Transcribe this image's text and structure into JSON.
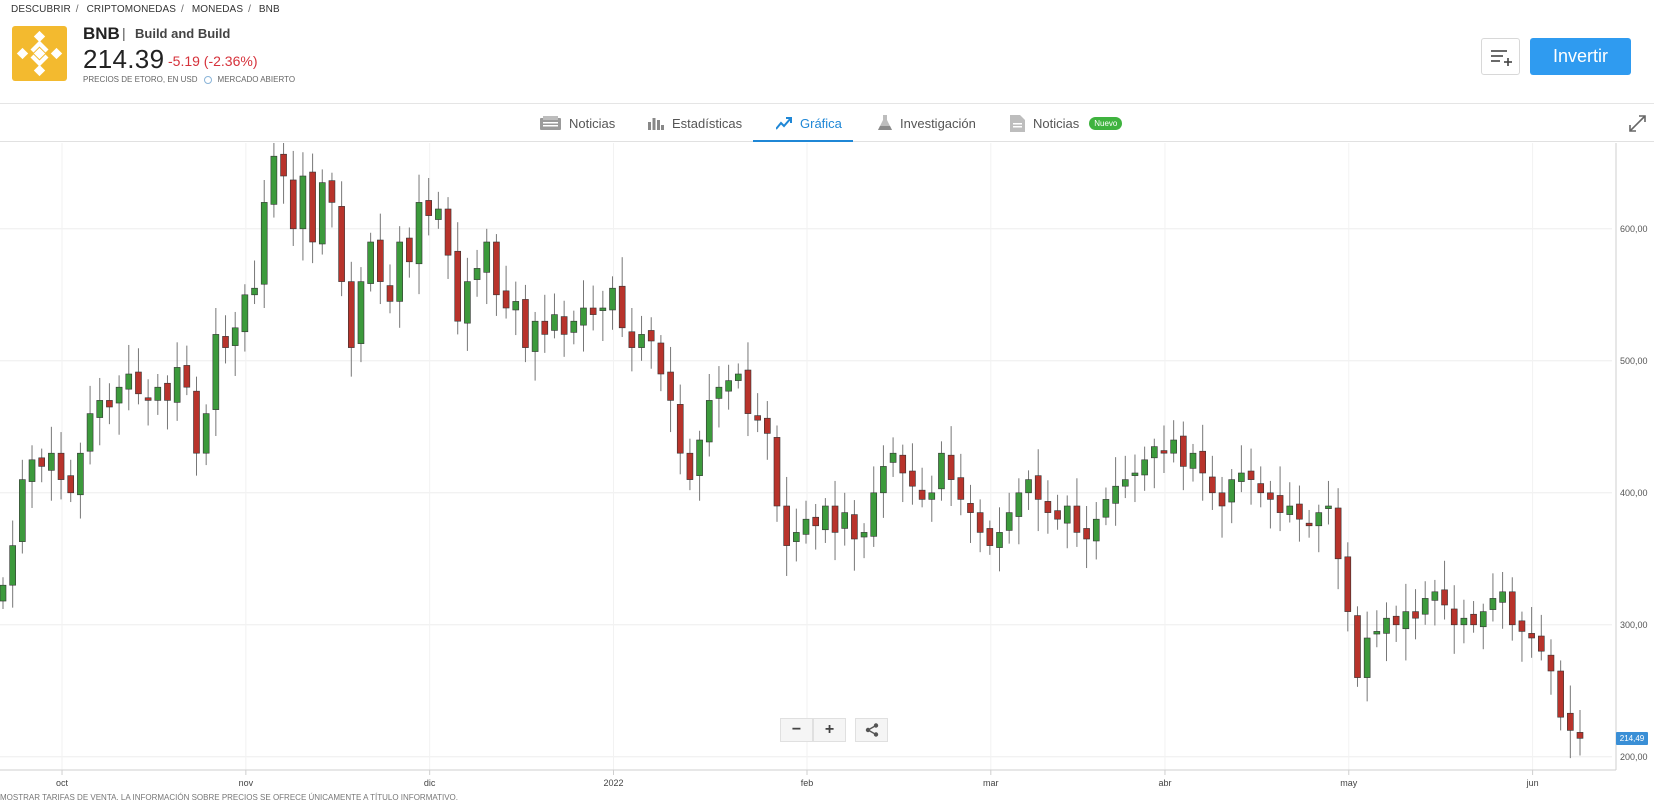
{
  "breadcrumb": [
    "DESCUBRIR",
    "CRIPTOMONEDAS",
    "MONEDAS",
    "BNB"
  ],
  "asset": {
    "ticker": "BNB",
    "name": "Build and Build",
    "price": "214.39",
    "change": "-5.19 (-2.36%)",
    "price_source": "PRECIOS DE ETORO, EN USD",
    "market_status": "MERCADO ABIERTO"
  },
  "actions": {
    "invest": "Invertir",
    "watchlist_icon": "add-to-list-icon"
  },
  "tabs": [
    {
      "label": "Noticias",
      "icon": "newspaper-icon"
    },
    {
      "label": "Estadísticas",
      "icon": "bar-chart-icon"
    },
    {
      "label": "Gráfica",
      "icon": "trend-chart-icon",
      "active": true
    },
    {
      "label": "Investigación",
      "icon": "flask-icon"
    },
    {
      "label": "Noticias",
      "icon": "document-icon",
      "badge": "Nuevo"
    }
  ],
  "chart_controls": {
    "zoom_out": "−",
    "zoom_in": "+",
    "share_icon": "share-icon"
  },
  "current_price_tag": "214,49",
  "footer_note": "MOSTRAR TARIFAS DE VENTA. LA INFORMACIÓN SOBRE PRECIOS SE OFRECE ÚNICAMENTE A TÍTULO INFORMATIVO.",
  "colors": {
    "up": "#3c9a3c",
    "down": "#b8332b",
    "accent": "#2f9bf0",
    "brand": "#F3BA2F"
  },
  "chart_data": {
    "type": "candlestick",
    "x_tick_labels": [
      "oct",
      "nov",
      "dic",
      "2022",
      "feb",
      "mar",
      "abr",
      "may",
      "jun"
    ],
    "y_tick_labels": [
      "600,00",
      "500,00",
      "400,00",
      "300,00",
      "200,00"
    ],
    "y_ticks": [
      600,
      500,
      400,
      300,
      200
    ],
    "ylim": [
      190,
      665
    ],
    "grid": true,
    "series": [
      {
        "closes": [
          330,
          360,
          410,
          425,
          420,
          430,
          410,
          400,
          430,
          460,
          470,
          465,
          480,
          490,
          475,
          470,
          480,
          470,
          495,
          480,
          430,
          460,
          520,
          510,
          525,
          550,
          555,
          620,
          655,
          640,
          600,
          640,
          590,
          635,
          620,
          560,
          510,
          560,
          590,
          560,
          545,
          590,
          575,
          620,
          610,
          615,
          580,
          530,
          560,
          570,
          590,
          550,
          540,
          545,
          510,
          530,
          520,
          535,
          520,
          530,
          540,
          535,
          540,
          555,
          525,
          510,
          520,
          515,
          490,
          470,
          430,
          410,
          440,
          470,
          480,
          485,
          490,
          460,
          455,
          445,
          390,
          360,
          370,
          380,
          375,
          390,
          370,
          385,
          365,
          370,
          400,
          420,
          430,
          415,
          405,
          395,
          400,
          430,
          410,
          395,
          385,
          370,
          360,
          370,
          385,
          400,
          410,
          395,
          385,
          380,
          390,
          370,
          365,
          380,
          395,
          405,
          410,
          415,
          425,
          435,
          430,
          440,
          420,
          430,
          415,
          400,
          390,
          410,
          415,
          410,
          400,
          395,
          385,
          390,
          380,
          375,
          385,
          390,
          350,
          310,
          260,
          290,
          295,
          305,
          300,
          310,
          305,
          320,
          325,
          315,
          300,
          305,
          300,
          310,
          320,
          325,
          300,
          295,
          290,
          280,
          265,
          230,
          220,
          214
        ]
      }
    ]
  }
}
